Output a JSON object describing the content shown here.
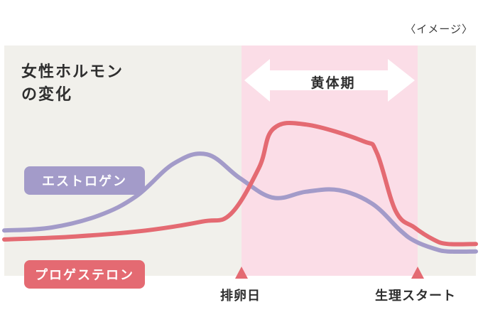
{
  "note": "〈イメージ〉",
  "title_lines": [
    "女性ホルモン",
    "の変化"
  ],
  "phase": {
    "label": "黄体期"
  },
  "markers": {
    "ovulation": "排卵日",
    "menstruation_start": "生理スタート"
  },
  "legend": {
    "estrogen": "エストロゲン",
    "progesterone": "プロゲステロン"
  },
  "colors": {
    "background": "#f1f0eb",
    "luteal_band": "#fbdde7",
    "estrogen": "#a39bc9",
    "progesterone": "#e46a72",
    "arrow": "#ffffff"
  },
  "chart_data": {
    "type": "line",
    "x_range": [
      0,
      100
    ],
    "y_range": [
      0,
      100
    ],
    "luteal_phase": [
      50,
      87
    ],
    "series": [
      {
        "name": "エストロゲン",
        "points": [
          [
            0,
            17
          ],
          [
            10,
            19
          ],
          [
            20,
            27
          ],
          [
            28,
            40
          ],
          [
            36,
            62
          ],
          [
            43,
            68
          ],
          [
            50,
            52
          ],
          [
            57,
            39
          ],
          [
            64,
            43
          ],
          [
            71,
            44
          ],
          [
            78,
            35
          ],
          [
            84,
            17
          ],
          [
            87,
            10
          ],
          [
            91,
            5
          ],
          [
            94,
            3
          ],
          [
            100,
            3
          ]
        ]
      },
      {
        "name": "プロゲステロン",
        "points": [
          [
            0,
            11
          ],
          [
            15,
            13
          ],
          [
            30,
            17
          ],
          [
            42,
            23
          ],
          [
            48,
            28
          ],
          [
            54,
            59
          ],
          [
            57,
            85
          ],
          [
            64,
            88
          ],
          [
            76,
            77
          ],
          [
            79,
            69
          ],
          [
            83,
            30
          ],
          [
            87,
            19
          ],
          [
            91,
            11
          ],
          [
            94,
            8
          ],
          [
            100,
            8
          ]
        ]
      }
    ]
  }
}
